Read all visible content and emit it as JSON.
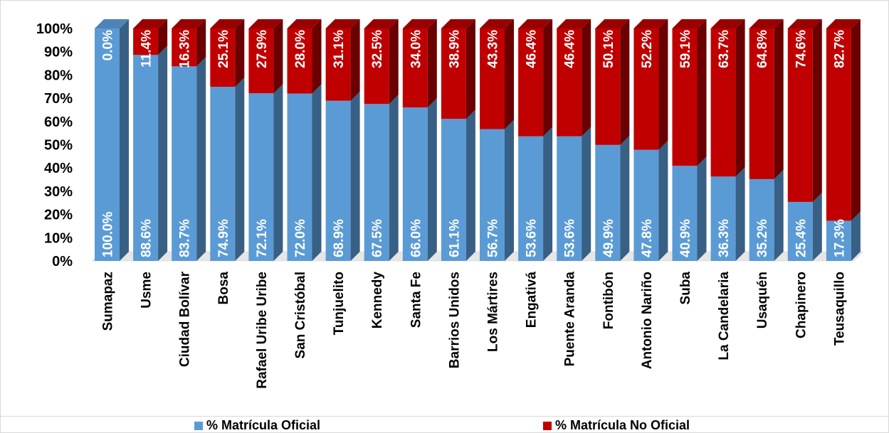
{
  "chart_data": {
    "type": "bar",
    "stacked": true,
    "percent": true,
    "three_d": true,
    "categories": [
      "Sumapaz",
      "Usme",
      "Ciudad Bolívar",
      "Bosa",
      "Rafael Uribe Uribe",
      "San Cristóbal",
      "Tunjuelito",
      "Kennedy",
      "Santa Fe",
      "Barrios Unidos",
      "Los Mártires",
      "Engativá",
      "Puente Aranda",
      "Fontibón",
      "Antonio Nariño",
      "Suba",
      "La Candelaria",
      "Usaquén",
      "Chapinero",
      "Teusaquillo"
    ],
    "series": [
      {
        "name": "% Matrícula Oficial",
        "color": "#5b9bd5",
        "values": [
          100.0,
          88.6,
          83.7,
          74.9,
          72.1,
          72.0,
          68.9,
          67.5,
          66.0,
          61.1,
          56.7,
          53.6,
          53.6,
          49.9,
          47.8,
          40.9,
          36.3,
          35.2,
          25.4,
          17.3
        ],
        "labels": [
          "100.0%",
          "88.6%",
          "83.7%",
          "74.9%",
          "72.1%",
          "72.0%",
          "68.9%",
          "67.5%",
          "66.0%",
          "61.1%",
          "56.7%",
          "53.6%",
          "53.6%",
          "49.9%",
          "47.8%",
          "40.9%",
          "36.3%",
          "35.2%",
          "25.4%",
          "17.3%"
        ]
      },
      {
        "name": "% Matrícula No Oficial",
        "color": "#c00000",
        "values": [
          0.0,
          11.4,
          16.3,
          25.1,
          27.9,
          28.0,
          31.1,
          32.5,
          34.0,
          38.9,
          43.3,
          46.4,
          46.4,
          50.1,
          52.2,
          59.1,
          63.7,
          64.8,
          74.6,
          82.7
        ],
        "labels": [
          "0.0%",
          "11.4%",
          "16.3%",
          "25.1%",
          "27.9%",
          "28.0%",
          "31.1%",
          "32.5%",
          "34.0%",
          "38.9%",
          "43.3%",
          "46.4%",
          "46.4%",
          "50.1%",
          "52.2%",
          "59.1%",
          "63.7%",
          "64.8%",
          "74.6%",
          "82.7%"
        ]
      }
    ],
    "y_ticks": [
      "0%",
      "10%",
      "20%",
      "30%",
      "40%",
      "50%",
      "60%",
      "70%",
      "80%",
      "90%",
      "100%"
    ],
    "ylim": [
      0,
      100
    ],
    "legend_position": "bottom",
    "grid": false
  }
}
